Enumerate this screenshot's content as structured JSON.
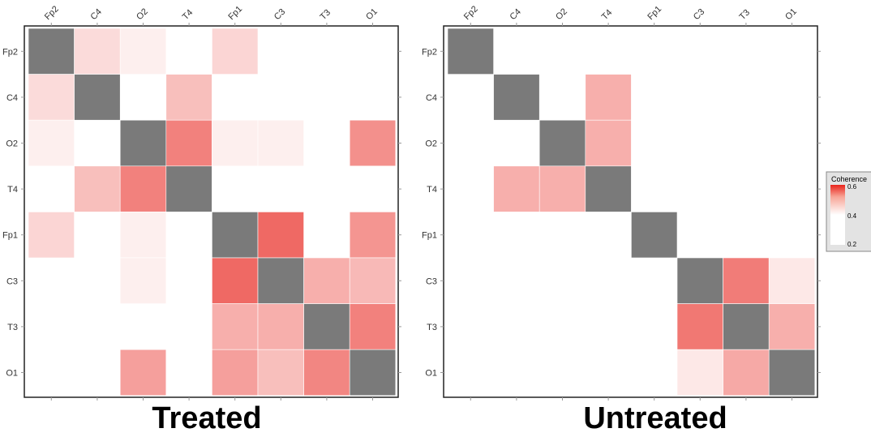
{
  "chart_data": [
    {
      "type": "heatmap",
      "title": "Treated",
      "x_categories": [
        "Fp2",
        "C4",
        "O2",
        "T4",
        "Fp1",
        "C3",
        "T3",
        "O1"
      ],
      "y_categories": [
        "Fp2",
        "C4",
        "O2",
        "T4",
        "Fp1",
        "C3",
        "T3",
        "O1"
      ],
      "diagonal_color": "#7a7a7a",
      "values": [
        [
          null,
          0.25,
          0.22,
          0.2,
          0.26,
          0.2,
          0.2,
          0.2
        ],
        [
          0.25,
          null,
          0.2,
          0.3,
          0.2,
          0.2,
          0.2,
          0.2
        ],
        [
          0.22,
          0.2,
          null,
          0.42,
          0.22,
          0.22,
          0.2,
          0.39
        ],
        [
          0.2,
          0.3,
          0.42,
          null,
          0.2,
          0.2,
          0.2,
          0.2
        ],
        [
          0.26,
          0.2,
          0.22,
          0.2,
          null,
          0.47,
          0.2,
          0.38
        ],
        [
          0.2,
          0.2,
          0.22,
          0.2,
          0.47,
          null,
          0.33,
          0.31
        ],
        [
          0.2,
          0.2,
          0.2,
          0.2,
          0.33,
          0.33,
          null,
          0.42
        ],
        [
          0.2,
          0.2,
          0.36,
          0.2,
          0.36,
          0.3,
          0.41,
          null
        ]
      ]
    },
    {
      "type": "heatmap",
      "title": "Untreated",
      "x_categories": [
        "Fp2",
        "C4",
        "O2",
        "T4",
        "Fp1",
        "C3",
        "T3",
        "O1"
      ],
      "y_categories": [
        "Fp2",
        "C4",
        "O2",
        "T4",
        "Fp1",
        "C3",
        "T3",
        "O1"
      ],
      "diagonal_color": "#7a7a7a",
      "values": [
        [
          null,
          0.2,
          0.2,
          0.2,
          0.2,
          0.2,
          0.2,
          0.2
        ],
        [
          0.2,
          null,
          0.2,
          0.33,
          0.2,
          0.2,
          0.2,
          0.2
        ],
        [
          0.2,
          0.2,
          null,
          0.33,
          0.2,
          0.2,
          0.2,
          0.2
        ],
        [
          0.2,
          0.33,
          0.33,
          null,
          0.2,
          0.2,
          0.2,
          0.2
        ],
        [
          0.2,
          0.2,
          0.2,
          0.2,
          null,
          0.2,
          0.2,
          0.2
        ],
        [
          0.2,
          0.2,
          0.2,
          0.2,
          0.2,
          null,
          0.43,
          0.23
        ],
        [
          0.2,
          0.2,
          0.2,
          0.2,
          0.2,
          0.44,
          null,
          0.33
        ],
        [
          0.2,
          0.2,
          0.2,
          0.2,
          0.2,
          0.23,
          0.34,
          null
        ]
      ]
    }
  ],
  "legend": {
    "title": "Coherence",
    "ticks": [
      "0.6",
      "0.4",
      "0.2"
    ],
    "min": 0.2,
    "max": 0.6,
    "color_low": "#ffffff",
    "color_high": "#e8231b"
  }
}
